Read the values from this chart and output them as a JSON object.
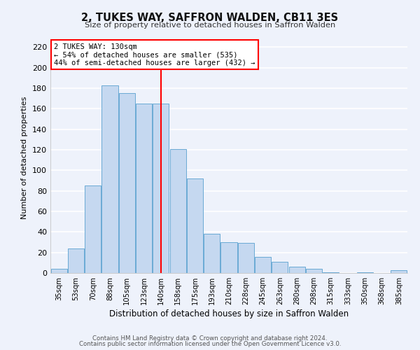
{
  "title": "2, TUKES WAY, SAFFRON WALDEN, CB11 3ES",
  "subtitle": "Size of property relative to detached houses in Saffron Walden",
  "xlabel": "Distribution of detached houses by size in Saffron Walden",
  "ylabel": "Number of detached properties",
  "categories": [
    "35sqm",
    "53sqm",
    "70sqm",
    "88sqm",
    "105sqm",
    "123sqm",
    "140sqm",
    "158sqm",
    "175sqm",
    "193sqm",
    "210sqm",
    "228sqm",
    "245sqm",
    "263sqm",
    "280sqm",
    "298sqm",
    "315sqm",
    "333sqm",
    "350sqm",
    "368sqm",
    "385sqm"
  ],
  "values": [
    4,
    24,
    85,
    183,
    175,
    165,
    165,
    121,
    92,
    38,
    30,
    29,
    16,
    11,
    6,
    4,
    1,
    0,
    1,
    0,
    3
  ],
  "bar_color": "#c5d8f0",
  "bar_edge_color": "#6aaad4",
  "background_color": "#eef2fb",
  "grid_color": "#ffffff",
  "ylim": [
    0,
    225
  ],
  "yticks": [
    0,
    20,
    40,
    60,
    80,
    100,
    120,
    140,
    160,
    180,
    200,
    220
  ],
  "property_label": "2 TUKES WAY: 130sqm",
  "annotation_line1": "← 54% of detached houses are smaller (535)",
  "annotation_line2": "44% of semi-detached houses are larger (432) →",
  "vline_x_index": 6.0,
  "footnote1": "Contains HM Land Registry data © Crown copyright and database right 2024.",
  "footnote2": "Contains public sector information licensed under the Open Government Licence v3.0."
}
